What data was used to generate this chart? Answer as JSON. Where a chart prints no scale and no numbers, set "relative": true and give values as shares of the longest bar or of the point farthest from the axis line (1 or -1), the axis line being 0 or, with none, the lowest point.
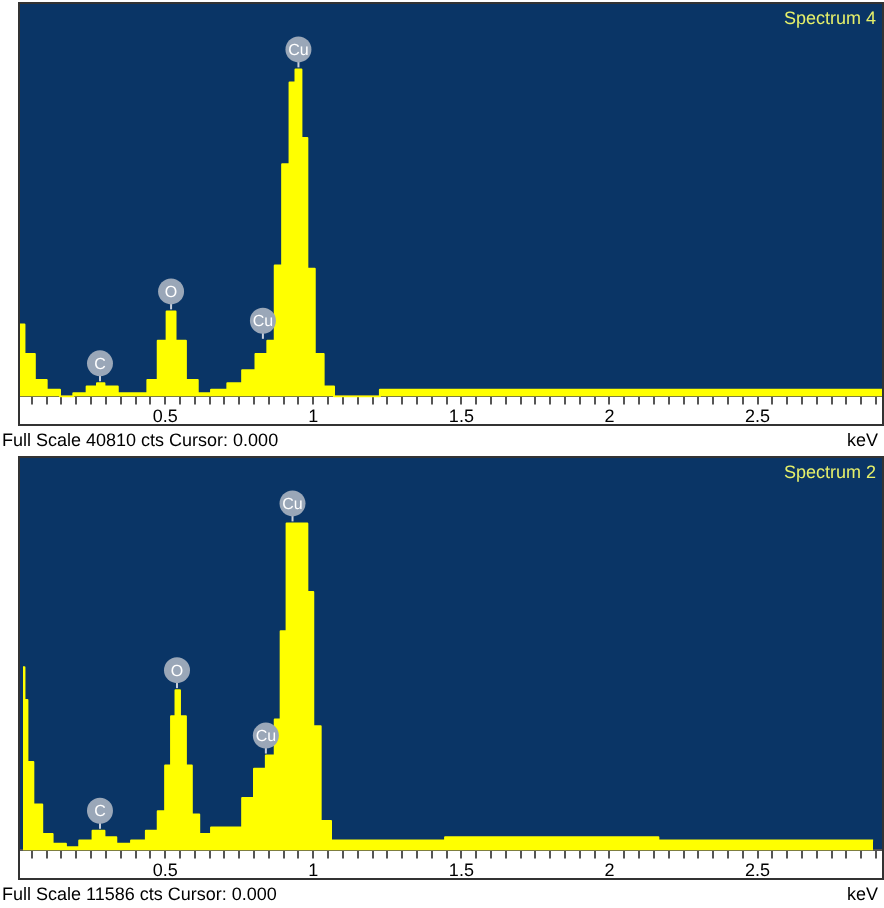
{
  "chart_data": [
    {
      "type": "area",
      "title": "Spectrum 4",
      "xlabel": "keV",
      "relative": true,
      "xlim": [
        0.01,
        2.92
      ],
      "xticks": [
        {
          "value": 0.05,
          "label": null
        },
        {
          "value": 0.1,
          "label": null
        },
        {
          "value": 0.15,
          "label": null
        },
        {
          "value": 0.2,
          "label": null
        },
        {
          "value": 0.25,
          "label": null
        },
        {
          "value": 0.3,
          "label": null
        },
        {
          "value": 0.35,
          "label": null
        },
        {
          "value": 0.4,
          "label": null
        },
        {
          "value": 0.45,
          "label": null
        },
        0.5,
        {
          "value": 0.55,
          "label": null
        },
        {
          "value": 0.6,
          "label": null
        },
        {
          "value": 0.65,
          "label": null
        },
        {
          "value": 0.7,
          "label": null
        },
        {
          "value": 0.75,
          "label": null
        },
        {
          "value": 0.8,
          "label": null
        },
        {
          "value": 0.85,
          "label": null
        },
        {
          "value": 0.9,
          "label": null
        },
        {
          "value": 0.95,
          "label": null
        },
        1,
        {
          "value": 1.05,
          "label": null
        },
        {
          "value": 1.1,
          "label": null
        },
        {
          "value": 1.15,
          "label": null
        },
        {
          "value": 1.2,
          "label": null
        },
        {
          "value": 1.25,
          "label": null
        },
        {
          "value": 1.3,
          "label": null
        },
        {
          "value": 1.35,
          "label": null
        },
        {
          "value": 1.4,
          "label": null
        },
        {
          "value": 1.45,
          "label": null
        },
        1.5,
        {
          "value": 1.55,
          "label": null
        },
        {
          "value": 1.6,
          "label": null
        },
        {
          "value": 1.65,
          "label": null
        },
        {
          "value": 1.7,
          "label": null
        },
        {
          "value": 1.75,
          "label": null
        },
        {
          "value": 1.8,
          "label": null
        },
        {
          "value": 1.85,
          "label": null
        },
        {
          "value": 1.9,
          "label": null
        },
        {
          "value": 1.95,
          "label": null
        },
        2,
        {
          "value": 2.05,
          "label": null
        },
        {
          "value": 2.1,
          "label": null
        },
        {
          "value": 2.15,
          "label": null
        },
        {
          "value": 2.2,
          "label": null
        },
        {
          "value": 2.25,
          "label": null
        },
        {
          "value": 2.3,
          "label": null
        },
        {
          "value": 2.35,
          "label": null
        },
        {
          "value": 2.4,
          "label": null
        },
        {
          "value": 2.45,
          "label": null
        },
        2.5,
        {
          "value": 2.55,
          "label": null
        },
        {
          "value": 2.6,
          "label": null
        },
        {
          "value": 2.65,
          "label": null
        },
        {
          "value": 2.7,
          "label": null
        },
        {
          "value": 2.75,
          "label": null
        },
        {
          "value": 2.8,
          "label": null
        },
        {
          "value": 2.85,
          "label": null
        },
        {
          "value": 2.9,
          "label": null
        }
      ],
      "series": [
        {
          "color": "#ffff00",
          "x": [
            0.01,
            0.04,
            0.08,
            0.12,
            0.17,
            0.21,
            0.26,
            0.28,
            0.31,
            0.37,
            0.42,
            0.46,
            0.49,
            0.52,
            0.55,
            0.59,
            0.63,
            0.68,
            0.74,
            0.78,
            0.83,
            0.86,
            0.88,
            0.91,
            0.93,
            0.95,
            0.97,
            0.99,
            1.02,
            1.05,
            1.09,
            1.36,
            2.92
          ],
          "values": [
            0.22,
            0.13,
            0.05,
            0.02,
            0,
            0.01,
            0.03,
            0.04,
            0.03,
            0.01,
            0.01,
            0.05,
            0.17,
            0.26,
            0.17,
            0.05,
            0.01,
            0.02,
            0.04,
            0.08,
            0.13,
            0.17,
            0.4,
            0.71,
            0.96,
            1,
            0.79,
            0.39,
            0.13,
            0.03,
            0,
            0.02,
            0.02
          ]
        }
      ],
      "annotations": [
        {
          "text": "C",
          "x": 0.28,
          "y": 0.04
        },
        {
          "text": "O",
          "x": 0.52,
          "y": 0.26
        },
        {
          "text": "Cu",
          "x": 0.83,
          "y": 0.17
        },
        {
          "text": "Cu",
          "x": 0.95,
          "y": 1
        },
        "Full Scale 40810 cts Cursor: 0.000"
      ]
    },
    {
      "type": "area",
      "title": "Spectrum 2",
      "xlabel": "keV",
      "relative": true,
      "xlim": [
        0.01,
        2.92
      ],
      "xticks": [
        {
          "value": 0.05,
          "label": null
        },
        {
          "value": 0.1,
          "label": null
        },
        {
          "value": 0.15,
          "label": null
        },
        {
          "value": 0.2,
          "label": null
        },
        {
          "value": 0.25,
          "label": null
        },
        {
          "value": 0.3,
          "label": null
        },
        {
          "value": 0.35,
          "label": null
        },
        {
          "value": 0.4,
          "label": null
        },
        {
          "value": 0.45,
          "label": null
        },
        0.5,
        {
          "value": 0.55,
          "label": null
        },
        {
          "value": 0.6,
          "label": null
        },
        {
          "value": 0.65,
          "label": null
        },
        {
          "value": 0.7,
          "label": null
        },
        {
          "value": 0.75,
          "label": null
        },
        {
          "value": 0.8,
          "label": null
        },
        {
          "value": 0.85,
          "label": null
        },
        {
          "value": 0.9,
          "label": null
        },
        {
          "value": 0.95,
          "label": null
        },
        1,
        {
          "value": 1.05,
          "label": null
        },
        {
          "value": 1.1,
          "label": null
        },
        {
          "value": 1.15,
          "label": null
        },
        {
          "value": 1.2,
          "label": null
        },
        {
          "value": 1.25,
          "label": null
        },
        {
          "value": 1.3,
          "label": null
        },
        {
          "value": 1.35,
          "label": null
        },
        {
          "value": 1.4,
          "label": null
        },
        {
          "value": 1.45,
          "label": null
        },
        1.5,
        {
          "value": 1.55,
          "label": null
        },
        {
          "value": 1.6,
          "label": null
        },
        {
          "value": 1.65,
          "label": null
        },
        {
          "value": 1.7,
          "label": null
        },
        {
          "value": 1.75,
          "label": null
        },
        {
          "value": 1.8,
          "label": null
        },
        {
          "value": 1.85,
          "label": null
        },
        {
          "value": 1.9,
          "label": null
        },
        {
          "value": 1.95,
          "label": null
        },
        2,
        {
          "value": 2.05,
          "label": null
        },
        {
          "value": 2.1,
          "label": null
        },
        {
          "value": 2.15,
          "label": null
        },
        {
          "value": 2.2,
          "label": null
        },
        {
          "value": 2.25,
          "label": null
        },
        {
          "value": 2.3,
          "label": null
        },
        {
          "value": 2.35,
          "label": null
        },
        {
          "value": 2.4,
          "label": null
        },
        {
          "value": 2.45,
          "label": null
        },
        2.5,
        {
          "value": 2.55,
          "label": null
        },
        {
          "value": 2.6,
          "label": null
        },
        {
          "value": 2.65,
          "label": null
        },
        {
          "value": 2.7,
          "label": null
        },
        {
          "value": 2.75,
          "label": null
        },
        {
          "value": 2.8,
          "label": null
        },
        {
          "value": 2.85,
          "label": null
        },
        {
          "value": 2.9,
          "label": null
        }
      ],
      "series": [
        {
          "color": "#ffff00",
          "x": [
            0.02,
            0.03,
            0.04,
            0.07,
            0.1,
            0.14,
            0.19,
            0.23,
            0.28,
            0.31,
            0.36,
            0.41,
            0.46,
            0.49,
            0.51,
            0.53,
            0.54,
            0.56,
            0.58,
            0.6,
            0.63,
            0.68,
            0.74,
            0.78,
            0.82,
            0.86,
            0.88,
            0.9,
            0.92,
            0.97,
            0.99,
            1.01,
            1.04,
            1.08,
            1.28,
            1.61,
            1.72,
            1.94,
            2.39,
            2.89
          ],
          "values": [
            0.56,
            0.46,
            0.27,
            0.14,
            0.05,
            0.02,
            0.01,
            0.03,
            0.06,
            0.04,
            0.02,
            0.03,
            0.06,
            0.12,
            0.26,
            0.41,
            0.49,
            0.41,
            0.26,
            0.11,
            0.05,
            0.07,
            0.07,
            0.16,
            0.25,
            0.29,
            0.4,
            0.67,
            1,
            1,
            0.79,
            0.38,
            0.09,
            0.03,
            0.03,
            0.04,
            0.04,
            0.04,
            0.03,
            0.03
          ]
        }
      ],
      "annotations": [
        {
          "text": "C",
          "x": 0.28,
          "y": 0.06
        },
        {
          "text": "O",
          "x": 0.54,
          "y": 0.49
        },
        {
          "text": "Cu",
          "x": 0.84,
          "y": 0.29
        },
        {
          "text": "Cu",
          "x": 0.93,
          "y": 1
        },
        "Full Scale 11586 cts Cursor: 0.000"
      ]
    }
  ]
}
